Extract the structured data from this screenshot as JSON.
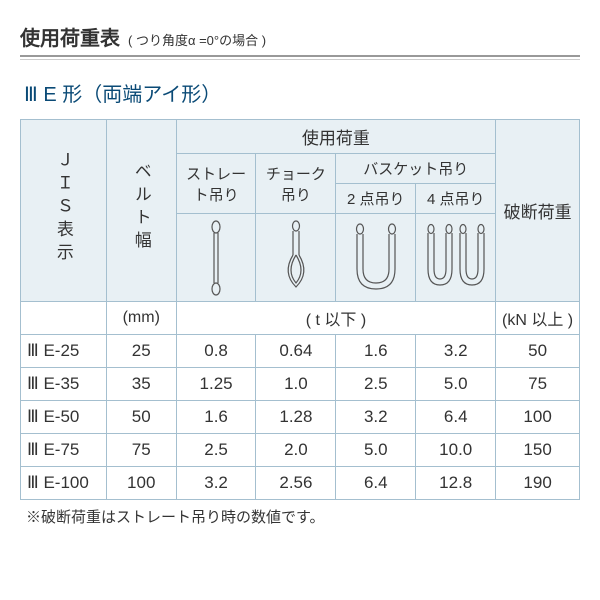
{
  "header": {
    "title": "使用荷重表",
    "note": "( つり角度α =0°の場合 )"
  },
  "subtitle": "Ⅲ E 形（両端アイ形）",
  "colors": {
    "border": "#a4bfcf",
    "header_bg": "#e8f0f4",
    "subtitle_color": "#0a4a76",
    "text": "#333333",
    "icon_stroke": "#555555"
  },
  "columns": {
    "jis": "ＪＩＳ表示",
    "belt": "ベルト幅",
    "load_group": "使用荷重",
    "straight": "ストレート吊り",
    "choke": "チョーク吊り",
    "basket_group": "バスケット吊り",
    "basket2": "2 点吊り",
    "basket4": "4 点吊り",
    "break": "破断荷重"
  },
  "units": {
    "belt": "(mm)",
    "load": "( t 以下 )",
    "break": "(kN 以上 )"
  },
  "rows": [
    {
      "jis": "Ⅲ E-25",
      "belt": "25",
      "s": "0.8",
      "c": "0.64",
      "b2": "1.6",
      "b4": "3.2",
      "br": "50"
    },
    {
      "jis": "Ⅲ E-35",
      "belt": "35",
      "s": "1.25",
      "c": "1.0",
      "b2": "2.5",
      "b4": "5.0",
      "br": "75"
    },
    {
      "jis": "Ⅲ E-50",
      "belt": "50",
      "s": "1.6",
      "c": "1.28",
      "b2": "3.2",
      "b4": "6.4",
      "br": "100"
    },
    {
      "jis": "Ⅲ E-75",
      "belt": "75",
      "s": "2.5",
      "c": "2.0",
      "b2": "5.0",
      "b4": "10.0",
      "br": "150"
    },
    {
      "jis": "Ⅲ E-100",
      "belt": "100",
      "s": "3.2",
      "c": "2.56",
      "b2": "6.4",
      "b4": "12.8",
      "br": "190"
    }
  ],
  "footnote": "※破断荷重はストレート吊り時の数値です。",
  "icons": {
    "straight": "straight-sling-icon",
    "choke": "choke-sling-icon",
    "basket2": "basket-2pt-icon",
    "basket4": "basket-4pt-icon"
  }
}
